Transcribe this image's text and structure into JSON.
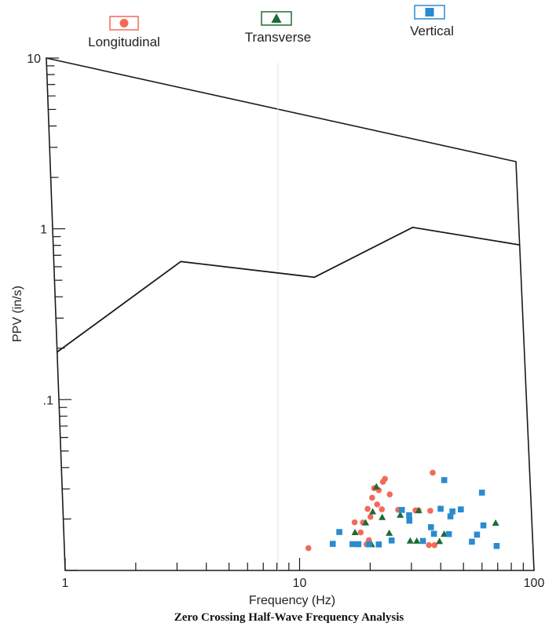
{
  "chart_data": {
    "type": "scatter",
    "title": "Zero Crossing Half-Wave Frequency Analysis",
    "xlabel": "Frequency (Hz)",
    "ylabel": "PPV (in/s)",
    "x_scale": "log",
    "y_scale": "log",
    "xlim": [
      1,
      100
    ],
    "ylim": [
      0.01,
      10
    ],
    "x_ticks": [
      {
        "value": 1,
        "label": "1"
      },
      {
        "value": 10,
        "label": "10"
      },
      {
        "value": 100,
        "label": "100"
      }
    ],
    "y_ticks": [
      {
        "value": 10,
        "label": "10"
      },
      {
        "value": 1,
        "label": "1"
      },
      {
        "value": 0.1,
        "label": ".1"
      }
    ],
    "grid": false,
    "legend_position": "top",
    "limit_curve": {
      "x": [
        1,
        3.5,
        13,
        35,
        100
      ],
      "y": [
        0.19,
        0.82,
        0.86,
        2.4,
        2.45
      ]
    },
    "series": [
      {
        "name": "Longitudinal",
        "marker": "circle",
        "color": "#f26a5a",
        "points": [
          [
            11,
            0.014
          ],
          [
            18,
            0.015
          ],
          [
            18.5,
            0.018
          ],
          [
            19.5,
            0.015
          ],
          [
            20,
            0.016
          ],
          [
            17.5,
            0.021
          ],
          [
            19,
            0.021
          ],
          [
            20.5,
            0.023
          ],
          [
            20,
            0.026
          ],
          [
            21,
            0.031
          ],
          [
            21.5,
            0.036
          ],
          [
            22.5,
            0.035
          ],
          [
            23.5,
            0.04
          ],
          [
            24,
            0.042
          ],
          [
            25,
            0.033
          ],
          [
            22,
            0.028
          ],
          [
            23,
            0.026
          ],
          [
            27,
            0.026
          ],
          [
            32,
            0.026
          ],
          [
            33,
            0.026
          ],
          [
            37,
            0.026
          ],
          [
            36,
            0.015
          ],
          [
            38,
            0.015
          ],
          [
            38.5,
            0.048
          ]
        ]
      },
      {
        "name": "Transverse",
        "marker": "triangle",
        "color": "#1e6b34",
        "points": [
          [
            17.5,
            0.018
          ],
          [
            19.5,
            0.021
          ],
          [
            20.5,
            0.015
          ],
          [
            21,
            0.025
          ],
          [
            22,
            0.037
          ],
          [
            23,
            0.023
          ],
          [
            24.5,
            0.018
          ],
          [
            27.5,
            0.024
          ],
          [
            30,
            0.016
          ],
          [
            32,
            0.016
          ],
          [
            33,
            0.026
          ],
          [
            40,
            0.016
          ],
          [
            42,
            0.018
          ],
          [
            70,
            0.022
          ]
        ]
      },
      {
        "name": "Vertical",
        "marker": "square",
        "color": "#2b8bcf",
        "points": [
          [
            14,
            0.015
          ],
          [
            15,
            0.018
          ],
          [
            17,
            0.015
          ],
          [
            18,
            0.015
          ],
          [
            20,
            0.015
          ],
          [
            22,
            0.015
          ],
          [
            25,
            0.016
          ],
          [
            28,
            0.026
          ],
          [
            30,
            0.024
          ],
          [
            30,
            0.022
          ],
          [
            34,
            0.016
          ],
          [
            37,
            0.02
          ],
          [
            38,
            0.018
          ],
          [
            41,
            0.027
          ],
          [
            44,
            0.018
          ],
          [
            45,
            0.024
          ],
          [
            46,
            0.026
          ],
          [
            43,
            0.043
          ],
          [
            50,
            0.027
          ],
          [
            55,
            0.016
          ],
          [
            58,
            0.018
          ],
          [
            62,
            0.036
          ],
          [
            62,
            0.021
          ],
          [
            70,
            0.015
          ]
        ]
      }
    ]
  }
}
